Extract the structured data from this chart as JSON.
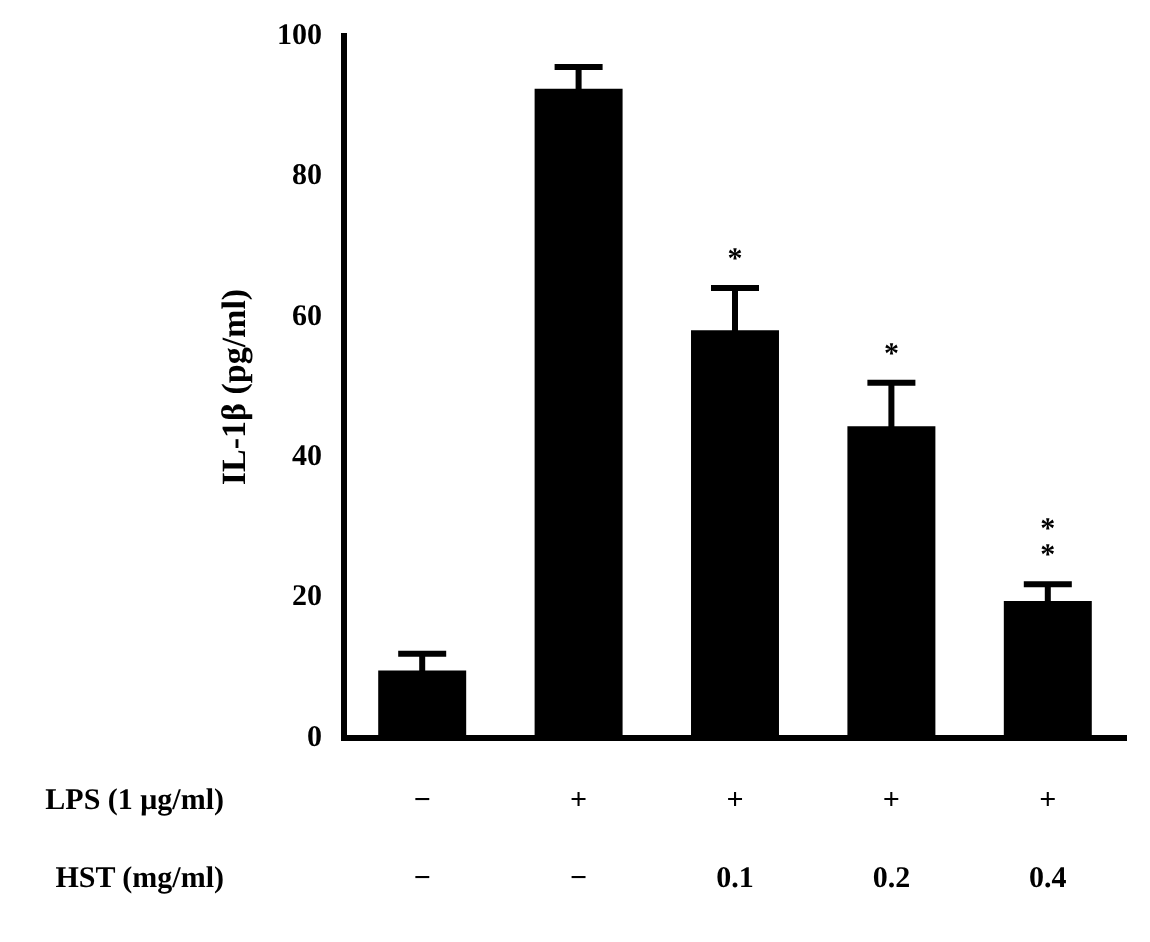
{
  "chart_data": {
    "type": "bar",
    "ylabel": "IL-1β (pg/ml)",
    "categories": [
      "−\n−",
      "+\n−",
      "+\n0.1",
      "+\n0.2",
      "+\n0.4"
    ],
    "values": [
      9.6,
      92.5,
      58.1,
      44.4,
      19.5
    ],
    "errors": [
      2.4,
      3.1,
      6,
      6.2,
      2.4
    ],
    "color": "#000000",
    "ylim": [
      0,
      100
    ],
    "yticks": [
      0,
      20,
      40,
      60,
      80,
      100
    ],
    "grid": false,
    "legend": false,
    "annotations": [
      "*",
      "*",
      "*\n*",
      "LPS (1 μg/ml)",
      "HST (mg/ml)"
    ]
  }
}
